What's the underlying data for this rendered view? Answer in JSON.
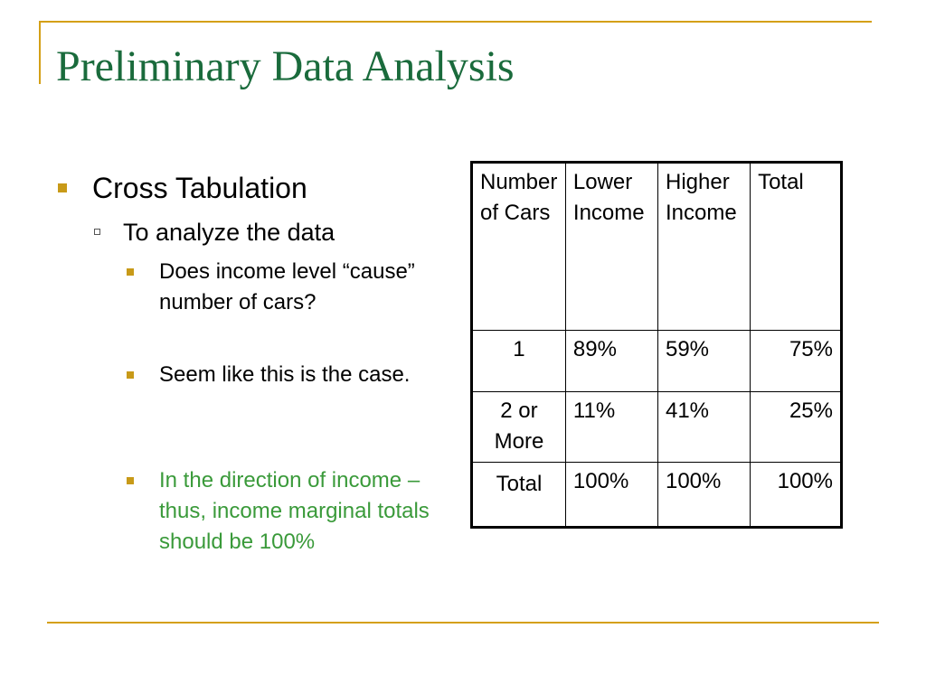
{
  "slide": {
    "title": "Preliminary Data Analysis",
    "accent_color": "#d4a017",
    "title_color": "#1a6b3c"
  },
  "bullets": {
    "level1": "Cross Tabulation",
    "level2": "To analyze the data",
    "level3": [
      "Does income level “cause” number of cars?",
      "Seem like this is the case.",
      "In the direction of income – thus, income marginal totals should be 100%"
    ]
  },
  "table": {
    "header": {
      "corner": "Number of Cars",
      "col1": "Lower Income",
      "col2": "Higher Income",
      "col3": "Total"
    },
    "rows": [
      {
        "label": "1",
        "lower": "89%",
        "higher": "59%",
        "total": "75%"
      },
      {
        "label": "2 or More",
        "lower": "11%",
        "higher": "41%",
        "total": "25%"
      },
      {
        "label": "Total",
        "lower": "100%",
        "higher": "100%",
        "total": "100%"
      }
    ]
  }
}
